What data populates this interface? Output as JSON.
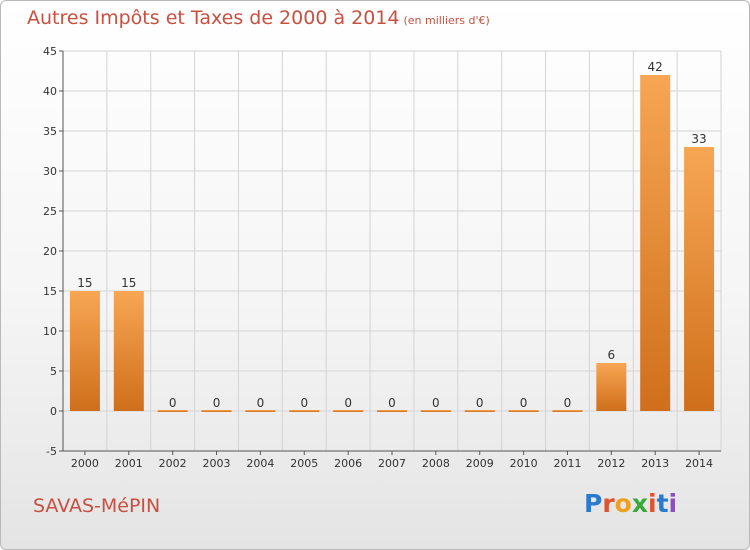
{
  "title": {
    "main": "Autres Impôts et Taxes de 2000 à 2014",
    "unit": "(en milliers d'€)"
  },
  "commune": "SAVAS-MéPIN",
  "logo": {
    "text": "Proxiti",
    "letter_colors": [
      "#2a7ad0",
      "#e0532f",
      "#f0a020",
      "#3aa83a",
      "#e0532f",
      "#2a7ad0",
      "#8a4fc0"
    ]
  },
  "chart_data": {
    "type": "bar",
    "title": "Autres Impôts et Taxes de 2000 à 2014",
    "subtitle": "(en milliers d'€)",
    "xlabel": "",
    "ylabel": "",
    "categories": [
      "2000",
      "2001",
      "2002",
      "2003",
      "2004",
      "2005",
      "2006",
      "2007",
      "2008",
      "2009",
      "2010",
      "2011",
      "2012",
      "2013",
      "2014"
    ],
    "values": [
      15,
      15,
      0,
      0,
      0,
      0,
      0,
      0,
      0,
      0,
      0,
      0,
      6,
      42,
      33
    ],
    "data_labels": [
      "15",
      "15",
      "0",
      "0",
      "0",
      "0",
      "0",
      "0",
      "0",
      "0",
      "0",
      "0",
      "6",
      "42",
      "33"
    ],
    "yticks": [
      -5,
      0,
      5,
      10,
      15,
      20,
      25,
      30,
      35,
      40,
      45
    ],
    "ylim": [
      -5,
      45
    ],
    "grid": true,
    "colors": {
      "bar_light": "#f7a654",
      "bar_dark": "#cf6f1b",
      "grid": "#d4d4d4",
      "axis": "#555555",
      "text": "#333333"
    }
  }
}
